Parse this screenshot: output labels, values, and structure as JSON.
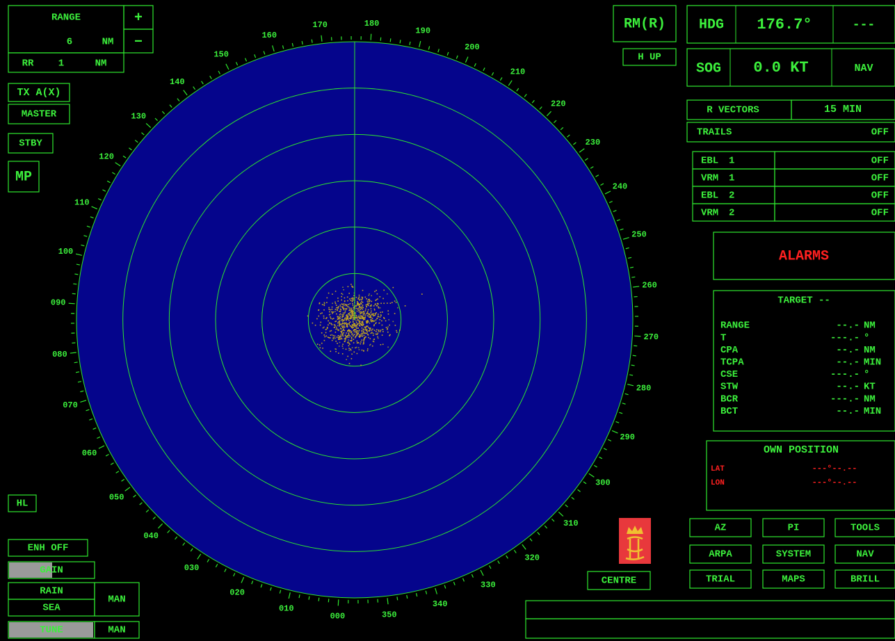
{
  "range": {
    "label": "RANGE",
    "value": "6",
    "unit": "NM",
    "plus": "+",
    "minus": "−"
  },
  "rr": {
    "label": "RR",
    "value": "1",
    "unit": "NM"
  },
  "tx": "TX A(X)",
  "master": "MASTER",
  "stby": "STBY",
  "mp": "MP",
  "hl": "HL",
  "enh": "ENH OFF",
  "gain": "GAIN",
  "rain": "RAIN",
  "sea": "SEA",
  "rain_sea_mode": "MAN",
  "tune": "TUNE",
  "tune_mode": "MAN",
  "motion": "RM(R)",
  "orientation": "H UP",
  "hdg": {
    "label": "HDG",
    "value": "176.7°",
    "aux": "---"
  },
  "sog": {
    "label": "SOG",
    "value": "0.0 KT",
    "source": "NAV"
  },
  "vectors": {
    "label": "R VECTORS",
    "value": "15 MIN"
  },
  "trails": {
    "label": "TRAILS",
    "value": "OFF"
  },
  "ebl_vrm": [
    {
      "label": "EBL",
      "num": "1",
      "value": "OFF"
    },
    {
      "label": "VRM",
      "num": "1",
      "value": "OFF"
    },
    {
      "label": "EBL",
      "num": "2",
      "value": "OFF"
    },
    {
      "label": "VRM",
      "num": "2",
      "value": "OFF"
    }
  ],
  "alarms": "ALARMS",
  "target": {
    "title": "TARGET --",
    "rows": [
      {
        "label": "RANGE",
        "value": "--.-",
        "unit": "NM"
      },
      {
        "label": "T",
        "value": "---.-",
        "unit": "°"
      },
      {
        "label": "CPA",
        "value": "--.-",
        "unit": "NM"
      },
      {
        "label": "TCPA",
        "value": "--.-",
        "unit": "MIN"
      },
      {
        "label": "CSE",
        "value": "---.-",
        "unit": "°"
      },
      {
        "label": "STW",
        "value": "--.-",
        "unit": "KT"
      },
      {
        "label": "BCR",
        "value": "---.-",
        "unit": "NM"
      },
      {
        "label": "BCT",
        "value": "--.-",
        "unit": "MIN"
      }
    ]
  },
  "own_position": {
    "title": "OWN POSITION",
    "rows": [
      {
        "label": "LAT",
        "value": "---°--.--"
      },
      {
        "label": "LON",
        "value": "---°--.--"
      }
    ]
  },
  "centre": "CENTRE",
  "buttons": [
    [
      "AZ",
      "PI",
      "TOOLS"
    ],
    [
      "ARPA",
      "SYSTEM",
      "NAV"
    ],
    [
      "TRIAL",
      "MAPS",
      "BRILL"
    ]
  ],
  "bearing_labels": [
    "000",
    "010",
    "020",
    "030",
    "040",
    "050",
    "060",
    "070",
    "080",
    "090",
    "100",
    "110",
    "120",
    "130",
    "140",
    "150",
    "160",
    "170",
    "180",
    "190",
    "200",
    "210",
    "220",
    "230",
    "240",
    "250",
    "260",
    "270",
    "280",
    "290",
    "300",
    "310",
    "320",
    "330",
    "340",
    "350"
  ]
}
